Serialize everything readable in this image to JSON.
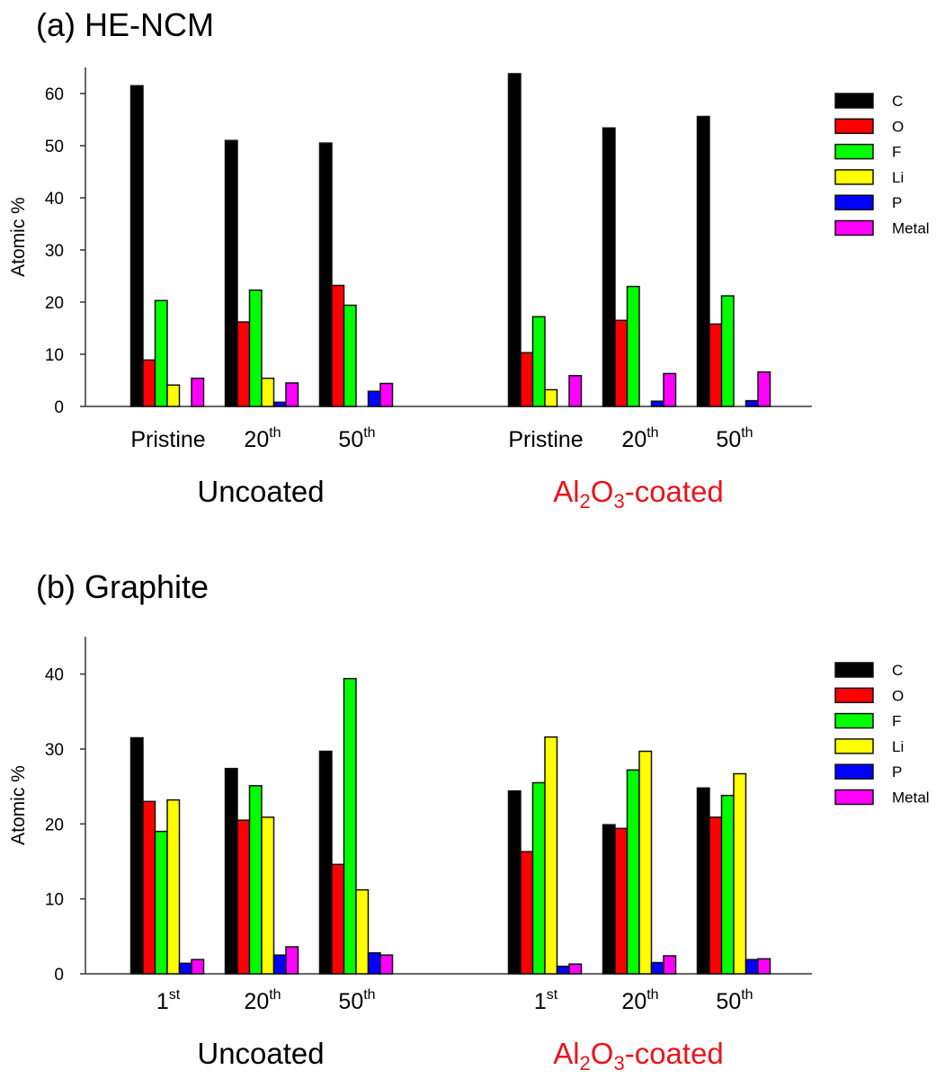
{
  "chart_data": [
    {
      "type": "bar",
      "title": "(a) HE-NCM",
      "ylabel": "Atomic %",
      "ylim": [
        0,
        65
      ],
      "yticks": [
        0,
        10,
        20,
        30,
        40,
        50,
        60
      ],
      "grid": false,
      "legend_position": "right",
      "categories": [
        {
          "label": "Pristine",
          "sup": "",
          "group": "Uncoated"
        },
        {
          "label": "20",
          "sup": "th",
          "group": "Uncoated"
        },
        {
          "label": "50",
          "sup": "th",
          "group": "Uncoated"
        },
        {
          "label": "Pristine",
          "sup": "",
          "group": "Al2O3-coated"
        },
        {
          "label": "20",
          "sup": "th",
          "group": "Al2O3-coated"
        },
        {
          "label": "50",
          "sup": "th",
          "group": "Al2O3-coated"
        }
      ],
      "groups": [
        {
          "label": "Uncoated",
          "color": "#000000"
        },
        {
          "label_parts": [
            "Al",
            "2",
            "O",
            "3",
            "-coated"
          ],
          "color": "#e8141c"
        }
      ],
      "series": [
        {
          "name": "C",
          "color": "#000000",
          "values": [
            61.5,
            51.0,
            50.5,
            63.8,
            53.4,
            55.6
          ]
        },
        {
          "name": "O",
          "color": "#ff0000",
          "values": [
            8.9,
            16.2,
            23.2,
            10.3,
            16.5,
            15.8
          ]
        },
        {
          "name": "F",
          "color": "#00ff00",
          "values": [
            20.3,
            22.3,
            19.4,
            17.2,
            23.0,
            21.2
          ]
        },
        {
          "name": "Li",
          "color": "#ffff00",
          "values": [
            4.1,
            5.4,
            0,
            3.2,
            0,
            0
          ]
        },
        {
          "name": "P",
          "color": "#0000ff",
          "values": [
            0,
            0.8,
            2.9,
            0,
            1.0,
            1.1
          ]
        },
        {
          "name": "Metal",
          "color": "#ff00ff",
          "values": [
            5.4,
            4.5,
            4.4,
            5.9,
            6.3,
            6.6
          ]
        }
      ]
    },
    {
      "type": "bar",
      "title": "(b) Graphite",
      "ylabel": "Atomic %",
      "ylim": [
        0,
        45
      ],
      "yticks": [
        0,
        10,
        20,
        30,
        40
      ],
      "grid": false,
      "legend_position": "right",
      "categories": [
        {
          "label": "1",
          "sup": "st",
          "group": "Uncoated"
        },
        {
          "label": "20",
          "sup": "th",
          "group": "Uncoated"
        },
        {
          "label": "50",
          "sup": "th",
          "group": "Uncoated"
        },
        {
          "label": "1",
          "sup": "st",
          "group": "Al2O3-coated"
        },
        {
          "label": "20",
          "sup": "th",
          "group": "Al2O3-coated"
        },
        {
          "label": "50",
          "sup": "th",
          "group": "Al2O3-coated"
        }
      ],
      "groups": [
        {
          "label": "Uncoated",
          "color": "#000000"
        },
        {
          "label_parts": [
            "Al",
            "2",
            "O",
            "3",
            "-coated"
          ],
          "color": "#e8141c"
        }
      ],
      "series": [
        {
          "name": "C",
          "color": "#000000",
          "values": [
            31.5,
            27.4,
            29.7,
            24.4,
            19.9,
            24.8
          ]
        },
        {
          "name": "O",
          "color": "#ff0000",
          "values": [
            23.0,
            20.5,
            14.6,
            16.3,
            19.4,
            20.9
          ]
        },
        {
          "name": "F",
          "color": "#00ff00",
          "values": [
            19.0,
            25.1,
            39.4,
            25.5,
            27.2,
            23.8
          ]
        },
        {
          "name": "Li",
          "color": "#ffff00",
          "values": [
            23.2,
            20.9,
            11.2,
            31.6,
            29.7,
            26.7
          ]
        },
        {
          "name": "P",
          "color": "#0000ff",
          "values": [
            1.4,
            2.5,
            2.8,
            1.0,
            1.5,
            1.9
          ]
        },
        {
          "name": "Metal",
          "color": "#ff00ff",
          "values": [
            1.9,
            3.6,
            2.5,
            1.3,
            2.4,
            2.0
          ]
        }
      ]
    }
  ]
}
